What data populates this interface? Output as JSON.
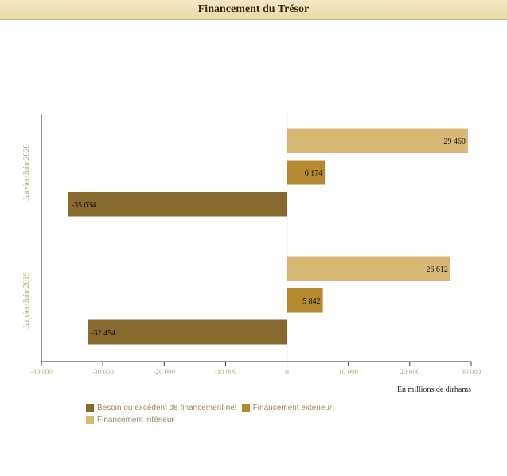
{
  "header": {
    "title": "Financement du Trésor"
  },
  "chart_data": {
    "type": "bar",
    "orientation": "horizontal",
    "categories": [
      "Janvier-Juin 2020",
      "Janvier-Juin 2019"
    ],
    "series": [
      {
        "name": "Financement intérieur",
        "color": "#d8b874",
        "values": [
          29460,
          26612
        ],
        "labels": [
          "29 460",
          "26 612"
        ]
      },
      {
        "name": "Financement extérieur",
        "color": "#b5892e",
        "values": [
          6174,
          5842
        ],
        "labels": [
          "6 174",
          "5 842"
        ]
      },
      {
        "name": "Besoin ou excédent de financement net",
        "color": "#896a2e",
        "values": [
          -35634,
          -32454
        ],
        "labels": [
          "-35 634",
          "-32 454"
        ]
      }
    ],
    "legend_order": [
      "Besoin ou excédent de financement net",
      "Financement extérieur",
      "Financement intérieur"
    ],
    "xlabel": "En millions de dirhams",
    "xlim": [
      -40000,
      30000
    ],
    "xticks": [
      -40000,
      -30000,
      -20000,
      -10000,
      0,
      10000,
      20000,
      30000
    ],
    "xtick_labels": [
      "-40 000",
      "-30 000",
      "-20 000",
      "-10 000",
      "0",
      "10 000",
      "20 000",
      "30 000"
    ],
    "category_label_color": "#b7ad72",
    "tick_label_color": "#b7ad72",
    "legend_position": "bottom-left"
  }
}
